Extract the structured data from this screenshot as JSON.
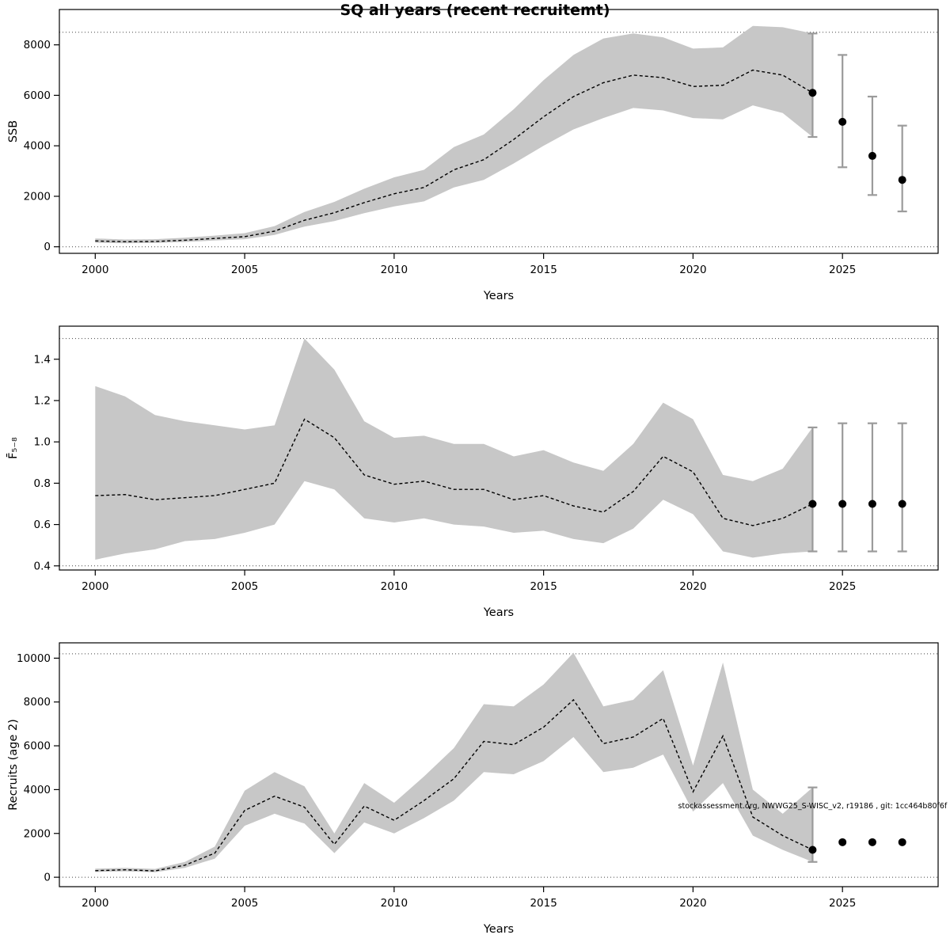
{
  "title": "SQ all years (recent recruitemt)",
  "xlabel": "Years",
  "style": {
    "band_color": "#c7c7c7",
    "line_color": "#000000",
    "ci_color": "#9b9b9b",
    "point_color": "#000000",
    "ref_line_color": "#444444",
    "frame_color": "#000000"
  },
  "chart_data": [
    {
      "type": "line",
      "ylabel": "SSB",
      "ylim": [
        -260,
        9400
      ],
      "yticks": [
        0,
        2000,
        4000,
        6000,
        8000
      ],
      "ytick_decimals": 0,
      "xlim": [
        1998.8,
        2028.2
      ],
      "xticks": [
        2000,
        2005,
        2010,
        2015,
        2020,
        2025
      ],
      "ref_lines": [
        0,
        8500
      ],
      "years": [
        2000,
        2001,
        2002,
        2003,
        2004,
        2005,
        2006,
        2007,
        2008,
        2009,
        2010,
        2011,
        2012,
        2013,
        2014,
        2015,
        2016,
        2017,
        2018,
        2019,
        2020,
        2021,
        2022,
        2023,
        2024
      ],
      "est": [
        230,
        200,
        210,
        260,
        330,
        400,
        620,
        1050,
        1350,
        1750,
        2100,
        2350,
        3050,
        3450,
        4250,
        5150,
        5950,
        6500,
        6800,
        6700,
        6350,
        6400,
        7000,
        6800,
        6100
      ],
      "lo": [
        160,
        140,
        150,
        190,
        250,
        300,
        470,
        800,
        1020,
        1330,
        1600,
        1800,
        2350,
        2650,
        3300,
        4000,
        4650,
        5100,
        5500,
        5400,
        5100,
        5050,
        5600,
        5300,
        4350
      ],
      "hi": [
        330,
        290,
        300,
        360,
        440,
        540,
        820,
        1380,
        1780,
        2300,
        2750,
        3050,
        3950,
        4450,
        5450,
        6600,
        7600,
        8250,
        8450,
        8300,
        7850,
        7900,
        8750,
        8700,
        8450
      ],
      "forecast": [
        {
          "year": 2024,
          "est": 6100,
          "lo": 4350,
          "hi": 8450
        },
        {
          "year": 2025,
          "est": 4950,
          "lo": 3150,
          "hi": 7600
        },
        {
          "year": 2026,
          "est": 3600,
          "lo": 2050,
          "hi": 5950
        },
        {
          "year": 2027,
          "est": 2650,
          "lo": 1400,
          "hi": 4800
        }
      ]
    },
    {
      "type": "line",
      "ylabel": "F̄₅₋₈",
      "ylim": [
        0.38,
        1.56
      ],
      "yticks": [
        0.4,
        0.6,
        0.8,
        1.0,
        1.2,
        1.4
      ],
      "ytick_decimals": 1,
      "xlim": [
        1998.8,
        2028.2
      ],
      "xticks": [
        2000,
        2005,
        2010,
        2015,
        2020,
        2025
      ],
      "ref_lines": [
        0.4,
        1.5
      ],
      "years": [
        2000,
        2001,
        2002,
        2003,
        2004,
        2005,
        2006,
        2007,
        2008,
        2009,
        2010,
        2011,
        2012,
        2013,
        2014,
        2015,
        2016,
        2017,
        2018,
        2019,
        2020,
        2021,
        2022,
        2023,
        2024
      ],
      "est": [
        0.74,
        0.745,
        0.72,
        0.73,
        0.74,
        0.77,
        0.8,
        1.11,
        1.02,
        0.84,
        0.795,
        0.81,
        0.77,
        0.77,
        0.72,
        0.74,
        0.69,
        0.66,
        0.76,
        0.93,
        0.855,
        0.63,
        0.595,
        0.63,
        0.7
      ],
      "lo": [
        0.43,
        0.46,
        0.48,
        0.52,
        0.53,
        0.56,
        0.6,
        0.81,
        0.77,
        0.63,
        0.61,
        0.63,
        0.6,
        0.59,
        0.56,
        0.57,
        0.53,
        0.51,
        0.58,
        0.72,
        0.65,
        0.47,
        0.44,
        0.46,
        0.47
      ],
      "hi": [
        1.27,
        1.22,
        1.13,
        1.1,
        1.08,
        1.06,
        1.08,
        1.5,
        1.35,
        1.1,
        1.02,
        1.03,
        0.99,
        0.99,
        0.93,
        0.96,
        0.9,
        0.86,
        0.99,
        1.19,
        1.11,
        0.84,
        0.81,
        0.87,
        1.07
      ],
      "forecast": [
        {
          "year": 2024,
          "est": 0.7,
          "lo": 0.47,
          "hi": 1.07
        },
        {
          "year": 2025,
          "est": 0.7,
          "lo": 0.47,
          "hi": 1.09
        },
        {
          "year": 2026,
          "est": 0.7,
          "lo": 0.47,
          "hi": 1.09
        },
        {
          "year": 2027,
          "est": 0.7,
          "lo": 0.47,
          "hi": 1.09
        }
      ]
    },
    {
      "type": "line",
      "ylabel": "Recruits (age 2)",
      "ylim": [
        -430,
        10700
      ],
      "yticks": [
        0,
        2000,
        4000,
        6000,
        8000,
        10000
      ],
      "ytick_decimals": 0,
      "xlim": [
        1998.8,
        2028.2
      ],
      "xticks": [
        2000,
        2005,
        2010,
        2015,
        2020,
        2025
      ],
      "ref_lines": [
        0,
        10200
      ],
      "years": [
        2000,
        2001,
        2002,
        2003,
        2004,
        2005,
        2006,
        2007,
        2008,
        2009,
        2010,
        2011,
        2012,
        2013,
        2014,
        2015,
        2016,
        2017,
        2018,
        2019,
        2020,
        2021,
        2022,
        2023,
        2024
      ],
      "est": [
        300,
        340,
        290,
        550,
        1100,
        3050,
        3700,
        3200,
        1500,
        3250,
        2600,
        3500,
        4500,
        6200,
        6050,
        6850,
        8100,
        6100,
        6400,
        7250,
        3900,
        6450,
        2750,
        1900,
        1250
      ],
      "lo": [
        240,
        270,
        230,
        430,
        850,
        2350,
        2900,
        2450,
        1100,
        2500,
        2000,
        2700,
        3500,
        4800,
        4700,
        5300,
        6400,
        4800,
        5000,
        5600,
        3000,
        4300,
        1900,
        1250,
        700
      ],
      "hi": [
        390,
        430,
        380,
        700,
        1400,
        3950,
        4800,
        4150,
        2000,
        4300,
        3400,
        4600,
        5900,
        7900,
        7800,
        8800,
        10250,
        7800,
        8100,
        9450,
        5100,
        9800,
        4000,
        2900,
        4100
      ],
      "forecast": [
        {
          "year": 2024,
          "est": 1250,
          "lo": 700,
          "hi": 4100
        },
        {
          "year": 2025,
          "est": 1600,
          "lo": null,
          "hi": null
        },
        {
          "year": 2026,
          "est": 1600,
          "lo": null,
          "hi": null
        },
        {
          "year": 2027,
          "est": 1600,
          "lo": null,
          "hi": null
        }
      ],
      "annotation": {
        "text": "stockassessment.org, NWWG25_S-WISC_v2, r19186 , git: 1cc464b80f6f",
        "x": 2019.5,
        "y": 3150
      }
    }
  ]
}
